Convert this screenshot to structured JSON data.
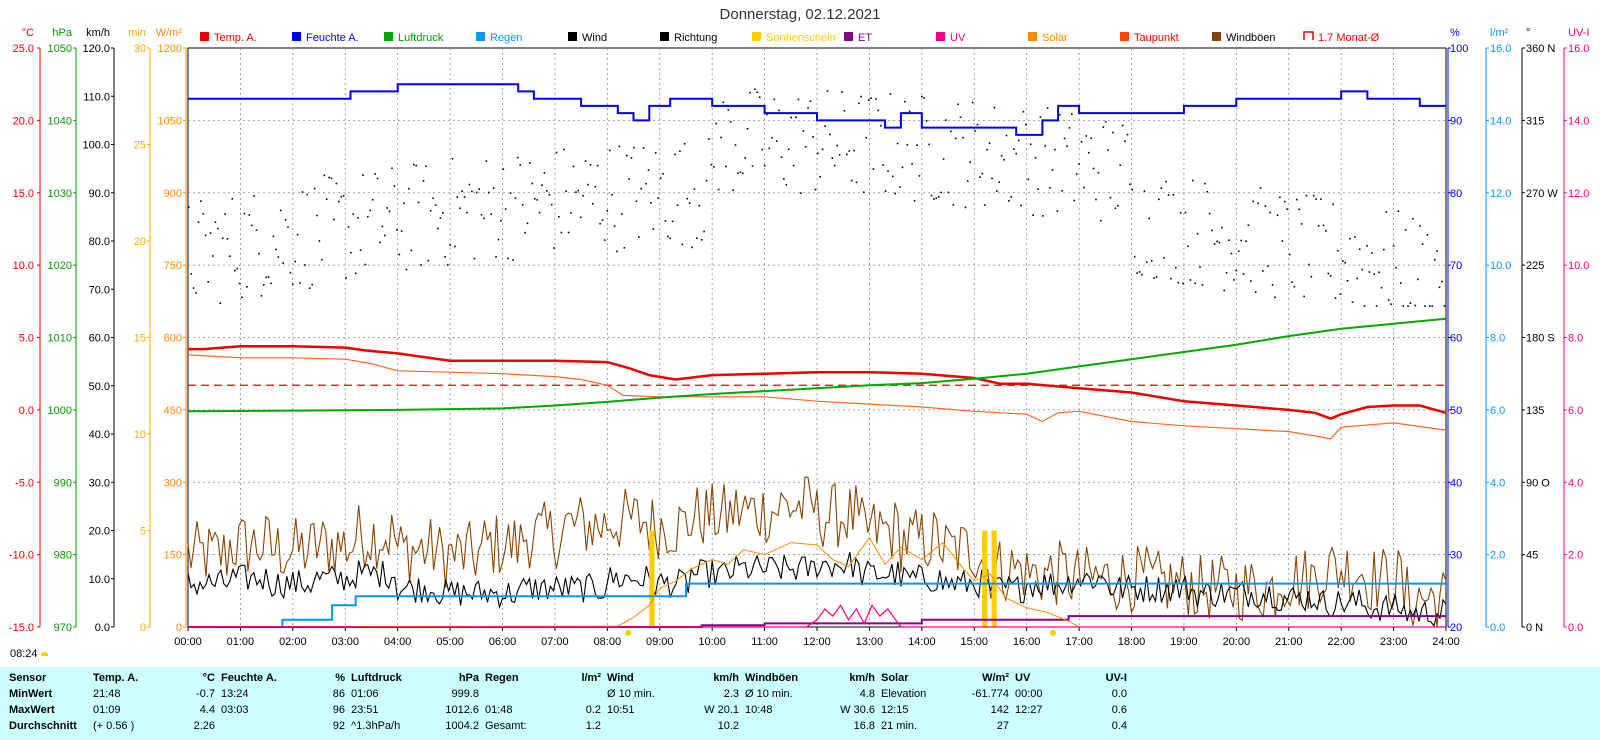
{
  "title": "Donnerstag, 02.12.2021",
  "sunrise_label": "08:24",
  "legend": [
    {
      "label": "Temp. A.",
      "color": "#ee0000",
      "color_text": "#ee0000",
      "style": "box"
    },
    {
      "label": "Feuchte A.",
      "color": "#0000ee",
      "color_text": "#0000ee",
      "style": "box"
    },
    {
      "label": "Luftdruck",
      "color": "#00aa00",
      "color_text": "#009900",
      "style": "box"
    },
    {
      "label": "Regen",
      "color": "#0099ee",
      "color_text": "#0099ee",
      "style": "box"
    },
    {
      "label": "Wind",
      "color": "#000000",
      "color_text": "#000000",
      "style": "box"
    },
    {
      "label": "Richtung",
      "color": "#000000",
      "color_text": "#000000",
      "style": "box"
    },
    {
      "label": "Sonnenschein",
      "color": "#ffcc00",
      "color_text": "#ffcc00",
      "style": "box"
    },
    {
      "label": "ET",
      "color": "#880088",
      "color_text": "#880088",
      "style": "box"
    },
    {
      "label": "UV",
      "color": "#ee0088",
      "color_text": "#ee0088",
      "style": "box"
    },
    {
      "label": "Solar",
      "color": "#ff8800",
      "color_text": "#ff8800",
      "style": "box"
    },
    {
      "label": "Taupunkt",
      "color": "#ff4400",
      "color_text": "#ee0000",
      "style": "box"
    },
    {
      "label": "Windböen",
      "color": "#884400",
      "color_text": "#000000",
      "style": "box"
    },
    {
      "label": "1.7 Monat-Ø",
      "color": "#ee0000",
      "color_text": "#ee0000",
      "style": "outline"
    }
  ],
  "axes": {
    "temp": {
      "unit": "°C",
      "color": "#ee0000",
      "ticks": [
        "25.0",
        "20.0",
        "15.0",
        "10.0",
        "5.0",
        "0.0",
        "-5.0",
        "-10.0",
        "-15.0"
      ]
    },
    "pressure": {
      "unit": "hPa",
      "color": "#009900",
      "ticks": [
        "1050",
        "1040",
        "1030",
        "1020",
        "1010",
        "1000",
        "990",
        "980",
        "970"
      ]
    },
    "wind": {
      "unit": "km/h",
      "color": "#000000",
      "ticks": [
        "120.0",
        "110.0",
        "100.0",
        "90.0",
        "80.0",
        "70.0",
        "60.0",
        "50.0",
        "40.0",
        "30.0",
        "20.0",
        "10.0",
        "0.0"
      ]
    },
    "sunshine": {
      "unit": "min",
      "color": "#ffaa00",
      "ticks": [
        "30",
        "25",
        "20",
        "15",
        "10",
        "5",
        "0"
      ]
    },
    "solar": {
      "unit": "W/m²",
      "color": "#ff8800",
      "ticks": [
        "1200",
        "1050",
        "900",
        "750",
        "600",
        "450",
        "300",
        "150",
        "0"
      ]
    },
    "humidity": {
      "unit": "%",
      "color": "#0000ee",
      "ticks": [
        "100",
        "90",
        "80",
        "70",
        "60",
        "50",
        "40",
        "30",
        "20"
      ]
    },
    "rain": {
      "unit": "l/m²",
      "color": "#0099ee",
      "ticks": [
        "16.0",
        "14.0",
        "12.0",
        "10.0",
        "8.0",
        "6.0",
        "4.0",
        "2.0",
        "0.0"
      ]
    },
    "direction": {
      "unit": "°",
      "color": "#000000",
      "ticks": [
        "360 N",
        "315",
        "270 W",
        "225",
        "180 S",
        "135",
        "90 O",
        "45",
        "0 N"
      ]
    },
    "uv": {
      "unit": "UV-I",
      "color": "#ee0088",
      "ticks": [
        "16.0",
        "14.0",
        "12.0",
        "10.0",
        "8.0",
        "6.0",
        "4.0",
        "2.0",
        "0.0"
      ]
    },
    "time": {
      "ticks": [
        "00:00",
        "01:00",
        "02:00",
        "03:00",
        "04:00",
        "05:00",
        "06:00",
        "07:00",
        "08:00",
        "09:00",
        "10:00",
        "11:00",
        "12:00",
        "13:00",
        "14:00",
        "15:00",
        "16:00",
        "17:00",
        "18:00",
        "19:00",
        "20:00",
        "21:00",
        "22:00",
        "23:00",
        "24:00"
      ]
    }
  },
  "chart_data": {
    "type": "line",
    "title": "Donnerstag, 02.12.2021",
    "x_range_hours": [
      0,
      24
    ],
    "series": [
      {
        "name": "Temp. A.",
        "axis": "temp",
        "color": "#ee0000",
        "width": 2.5,
        "x": [
          0,
          0.3,
          1.0,
          2.0,
          3.0,
          3.4,
          4.0,
          5.0,
          6.0,
          7.0,
          8.0,
          8.4,
          8.8,
          9.3,
          10.0,
          11.0,
          12.0,
          13.0,
          14.0,
          15.0,
          15.5,
          16.0,
          17.0,
          18.0,
          19.0,
          20.0,
          21.0,
          21.5,
          21.8,
          22.0,
          22.5,
          23.0,
          23.5,
          24.0
        ],
        "y": [
          4.2,
          4.2,
          4.4,
          4.4,
          4.3,
          4.1,
          3.9,
          3.4,
          3.4,
          3.4,
          3.3,
          2.9,
          2.4,
          2.1,
          2.4,
          2.5,
          2.6,
          2.6,
          2.5,
          2.2,
          1.8,
          1.8,
          1.5,
          1.2,
          0.6,
          0.3,
          0.0,
          -0.2,
          -0.6,
          -0.3,
          0.2,
          0.3,
          0.3,
          -0.2
        ]
      },
      {
        "name": "Taupunkt",
        "axis": "temp",
        "color": "#ff6622",
        "width": 1.2,
        "x": [
          0,
          1,
          2,
          3,
          3.5,
          4,
          5,
          6,
          7,
          7.5,
          8,
          8.3,
          9,
          10,
          11,
          12,
          13,
          14,
          15,
          15.5,
          16,
          16.3,
          16.6,
          17,
          18,
          19,
          20,
          21,
          21.5,
          21.8,
          22,
          23,
          24
        ],
        "y": [
          3.8,
          3.6,
          3.6,
          3.5,
          3.2,
          2.7,
          2.6,
          2.5,
          2.3,
          2.1,
          1.7,
          1.0,
          0.9,
          0.9,
          0.9,
          0.6,
          0.4,
          0.2,
          -0.1,
          -0.2,
          -0.3,
          -0.8,
          -0.2,
          -0.1,
          -0.8,
          -1.1,
          -1.3,
          -1.5,
          -1.8,
          -2.0,
          -1.2,
          -0.9,
          -1.4
        ]
      },
      {
        "name": "Luftdruck",
        "axis": "pressure",
        "color": "#00aa00",
        "width": 2,
        "x": [
          0,
          2,
          4,
          6,
          7,
          8,
          9,
          10,
          11,
          12,
          13,
          14,
          15,
          16,
          17,
          18,
          19,
          20,
          21,
          22,
          23,
          24
        ],
        "y": [
          999.8,
          999.9,
          1000.0,
          1000.2,
          1000.6,
          1001.1,
          1001.7,
          1002.2,
          1002.6,
          1003.0,
          1003.4,
          1003.7,
          1004.3,
          1005.0,
          1006.0,
          1007.0,
          1008.0,
          1009.0,
          1010.2,
          1011.2,
          1011.9,
          1012.6
        ]
      },
      {
        "name": "Feuchte A.",
        "axis": "humidity",
        "color": "#0000ee",
        "width": 2,
        "step": true,
        "x": [
          0,
          2.6,
          3.1,
          3.3,
          4.0,
          5.0,
          6.0,
          6.3,
          6.6,
          7.0,
          7.5,
          8.0,
          8.2,
          8.5,
          8.8,
          9.2,
          9.5,
          10.0,
          10.5,
          11.0,
          11.5,
          12.0,
          12.5,
          13.0,
          13.3,
          13.6,
          14.0,
          14.5,
          15.0,
          15.5,
          15.8,
          16.0,
          16.3,
          16.6,
          17.0,
          17.5,
          18.0,
          18.5,
          19.0,
          19.5,
          20.0,
          21.0,
          21.5,
          22.0,
          22.5,
          23.0,
          23.5,
          24.0
        ],
        "y": [
          93,
          93,
          94,
          94,
          95,
          95,
          95,
          94,
          93,
          93,
          92,
          92,
          91,
          90,
          92,
          93,
          93,
          92,
          92,
          91,
          91,
          90,
          90,
          90,
          89,
          91,
          89,
          89,
          89,
          89,
          88,
          88,
          90,
          92,
          91,
          91,
          91,
          91,
          92,
          92,
          93,
          93,
          93,
          94,
          93,
          93,
          92,
          92
        ]
      },
      {
        "name": "Regen",
        "axis": "rain",
        "color": "#0099ee",
        "width": 2,
        "step": true,
        "x": [
          0,
          1.8,
          2.75,
          3.0,
          3.2,
          9.0,
          9.5,
          24.0
        ],
        "y": [
          0,
          0.2,
          0.6,
          0.6,
          0.85,
          0.85,
          1.2,
          1.2
        ]
      },
      {
        "name": "ET",
        "axis": "rain",
        "color": "#880088",
        "width": 2,
        "step": true,
        "x": [
          0,
          9.8,
          11,
          14,
          16.8,
          24
        ],
        "y": [
          0,
          0.05,
          0.1,
          0.2,
          0.3,
          0.3
        ]
      },
      {
        "name": "Solar",
        "axis": "solar",
        "color": "#ff8800",
        "width": 1,
        "x": [
          0,
          8.2,
          8.5,
          8.8,
          9.0,
          9.3,
          9.6,
          10.0,
          10.3,
          10.6,
          11.0,
          11.5,
          12.0,
          12.3,
          12.6,
          13.0,
          13.3,
          13.6,
          14.0,
          14.4,
          14.8,
          15.0,
          15.3,
          15.6,
          16.0,
          16.4,
          16.8,
          17.0,
          24
        ],
        "y": [
          0,
          2,
          20,
          45,
          80,
          95,
          120,
          140,
          130,
          160,
          150,
          175,
          170,
          140,
          125,
          185,
          130,
          165,
          140,
          175,
          120,
          95,
          110,
          60,
          40,
          30,
          12,
          0,
          0
        ]
      },
      {
        "name": "UV",
        "axis": "uv",
        "color": "#ee0088",
        "width": 1.2,
        "x": [
          0,
          11.8,
          12.0,
          12.15,
          12.3,
          12.45,
          12.6,
          12.75,
          12.9,
          13.05,
          13.2,
          13.35,
          13.5,
          13.6,
          24
        ],
        "y": [
          0,
          0,
          0.2,
          0.5,
          0.3,
          0.6,
          0.2,
          0.5,
          0.1,
          0.6,
          0.3,
          0.5,
          0.2,
          0,
          0
        ]
      }
    ],
    "wind": {
      "name": "Wind",
      "axis": "wind",
      "color": "#000000",
      "base": [
        9,
        10,
        9,
        10,
        11,
        8,
        7,
        7,
        8,
        8,
        10,
        9,
        11,
        12,
        12,
        13,
        11,
        10,
        9,
        8,
        9,
        10,
        8,
        8,
        7,
        7,
        6,
        5,
        4,
        3
      ],
      "avg": 10.2,
      "max": 20.1
    },
    "gusts": {
      "name": "Windböen",
      "axis": "wind",
      "color": "#884400",
      "base": [
        15,
        17,
        16,
        17,
        19,
        16,
        15,
        17,
        19,
        21,
        22,
        21,
        23,
        24,
        25,
        23,
        20,
        18,
        16,
        12,
        11,
        10,
        10,
        9,
        8,
        8,
        10,
        12,
        10,
        6
      ],
      "max": 30.6
    },
    "direction_points": {
      "name": "Richtung",
      "axis": "direction",
      "color": "#000000"
    },
    "sunshine_bars": [
      {
        "x": 8.8,
        "w": 0.1,
        "value": 5.0
      },
      {
        "x": 15.15,
        "w": 0.1,
        "value": 5.0
      },
      {
        "x": 15.33,
        "w": 0.1,
        "value": 5.0
      }
    ],
    "monthly_avg_temp": {
      "name": "1.7 Monat-Ø",
      "axis": "temp",
      "value": 1.7,
      "color": "#ee0000"
    }
  },
  "summary": {
    "headers": [
      "Sensor",
      "Temp. A.",
      "°C",
      "Feuchte A.",
      "%",
      "Luftdruck",
      "hPa",
      "Regen",
      "l/m²",
      "Wind",
      "km/h",
      "Windböen",
      "km/h",
      "Solar",
      "W/m²",
      "UV",
      "UV-I"
    ],
    "rows": [
      [
        "MinWert",
        "21:48",
        "-0.7",
        "13:24",
        "86",
        "01:06",
        "999.8",
        "",
        "",
        "Ø 10 min.",
        "2.3",
        "Ø 10 min.",
        "4.8",
        "Elevation",
        "-61.774",
        "00:00",
        "0.0"
      ],
      [
        "MaxWert",
        "01:09",
        "4.4",
        "03:03",
        "96",
        "23:51",
        "1012.6",
        "01:48",
        "0.2",
        "10:51",
        "W 20.1",
        "10:48",
        "W 30.6",
        "12:15",
        "142",
        "12:27",
        "0.6"
      ],
      [
        "Durchschnitt",
        "(+ 0.56 )",
        "2.26",
        "",
        "92",
        "^1.3hPa/h",
        "1004.2",
        "Gesamt:",
        "1.2",
        "",
        "10.2",
        "",
        "16.8",
        "21 min.",
        "27",
        "",
        "0.4"
      ]
    ]
  }
}
